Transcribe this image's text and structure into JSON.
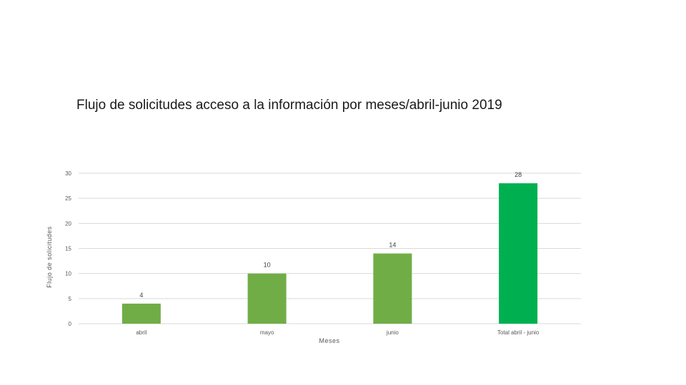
{
  "slide": {
    "title": "Flujo de solicitudes acceso a la información por meses/abril-junio 2019"
  },
  "chart_data": {
    "type": "bar",
    "title": "Flujo de solicitudes acceso a la información por meses/abril-junio 2019",
    "categories": [
      "abril",
      "mayo",
      "junio",
      "Total abril - junio"
    ],
    "values": [
      4,
      10,
      14,
      28
    ],
    "colors": [
      "#70ad47",
      "#70ad47",
      "#70ad47",
      "#00b050"
    ],
    "xlabel": "Meses",
    "ylabel": "Flujo de solicitudes",
    "ylim": [
      0,
      30
    ],
    "yticks": [
      0,
      5,
      10,
      15,
      20,
      25,
      30
    ],
    "grid": true,
    "gridColor": "#d9d9d9"
  }
}
